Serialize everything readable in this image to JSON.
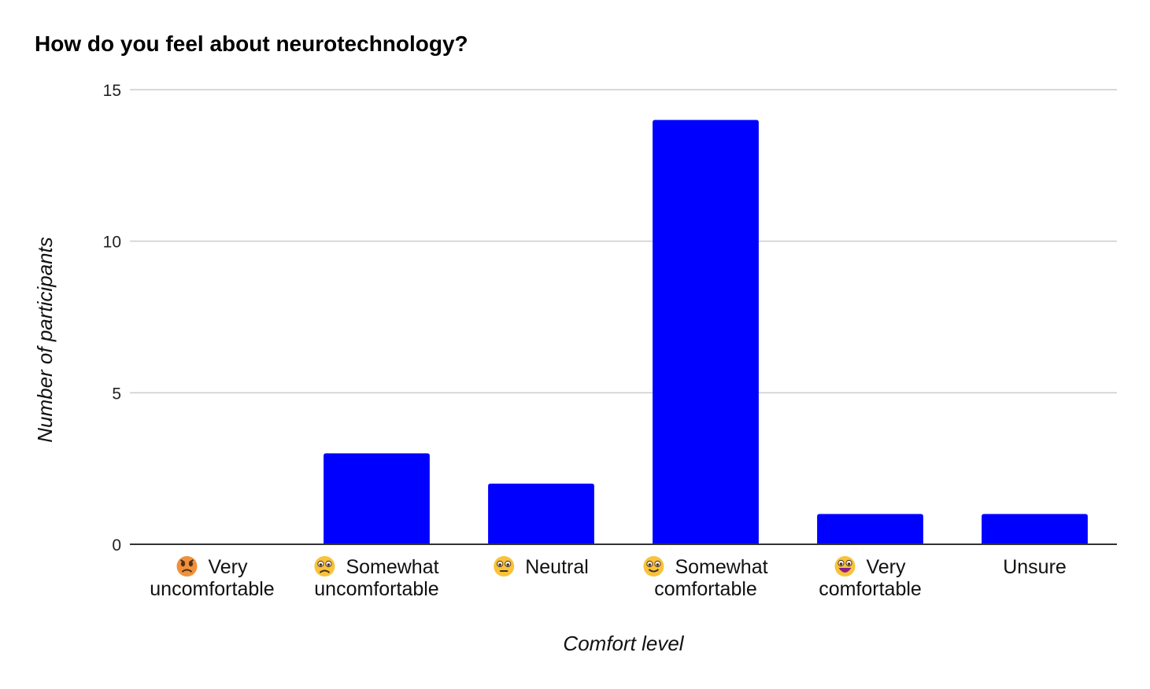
{
  "chart_data": {
    "type": "bar",
    "title": "How do you feel about neurotechnology?",
    "xlabel": "Comfort level",
    "ylabel": "Number of participants",
    "categories": [
      {
        "emoji": "angry-face",
        "lines": [
          "Very",
          "uncomfortable"
        ]
      },
      {
        "emoji": "frowning-face",
        "lines": [
          "Somewhat",
          "uncomfortable"
        ]
      },
      {
        "emoji": "neutral-face",
        "lines": [
          "Neutral"
        ]
      },
      {
        "emoji": "slightly-smiling-face",
        "lines": [
          "Somewhat",
          "comfortable"
        ]
      },
      {
        "emoji": "grinning-face",
        "lines": [
          "Very",
          "comfortable"
        ]
      },
      {
        "emoji": "",
        "lines": [
          "Unsure"
        ]
      }
    ],
    "values": [
      0,
      3,
      2,
      14,
      1,
      1
    ],
    "ylim": [
      0,
      15
    ],
    "yticks": [
      0,
      5,
      10,
      15
    ],
    "grid": true,
    "legend": "none",
    "colors": {
      "bar": "#0000ff",
      "grid": "#cccccc",
      "axis": "#333333"
    }
  }
}
